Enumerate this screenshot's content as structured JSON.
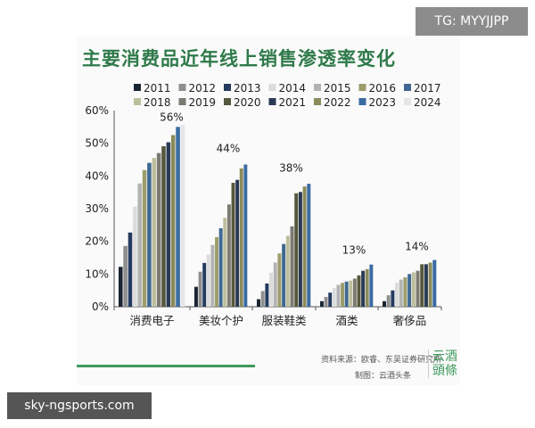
{
  "watermark_badge": "TG: MYYJJPP",
  "site_label": "sky-ngsports.com",
  "chart_data": {
    "type": "bar",
    "title": "主要消费品近年线上销售渗透率变化",
    "categories": [
      "消费电子",
      "美妆个护",
      "服装鞋类",
      "酒类",
      "奢侈品"
    ],
    "ylim": [
      0,
      60
    ],
    "yticks": [
      "0%",
      "10%",
      "20%",
      "30%",
      "40%",
      "50%",
      "60%"
    ],
    "legend_position": "top",
    "grid": false,
    "series": [
      {
        "name": "2011",
        "color": "#1b2531",
        "values": [
          12.2,
          6.1,
          2.3,
          1.7,
          1.7
        ]
      },
      {
        "name": "2012",
        "color": "#8e8e8e",
        "values": [
          18.6,
          10.7,
          4.8,
          3.0,
          3.5
        ]
      },
      {
        "name": "2013",
        "color": "#243b5f",
        "values": [
          22.7,
          13.4,
          7.1,
          4.3,
          5.0
        ]
      },
      {
        "name": "2014",
        "color": "#dcdcdc",
        "values": [
          30.6,
          16.0,
          10.4,
          5.8,
          7.3
        ]
      },
      {
        "name": "2015",
        "color": "#b3b3b3",
        "values": [
          37.7,
          18.9,
          13.5,
          6.7,
          8.3
        ]
      },
      {
        "name": "2016",
        "color": "#9c9c6c",
        "values": [
          41.8,
          21.3,
          16.3,
          7.3,
          9.0
        ]
      },
      {
        "name": "2017",
        "color": "#3e6791",
        "values": [
          44.0,
          24.0,
          19.2,
          7.7,
          10.0
        ]
      },
      {
        "name": "2018",
        "color": "#bcbf9c",
        "values": [
          45.5,
          27.2,
          21.7,
          8.0,
          10.5
        ]
      },
      {
        "name": "2019",
        "color": "#7b7a72",
        "values": [
          47.0,
          31.3,
          24.6,
          8.6,
          11.0
        ]
      },
      {
        "name": "2020",
        "color": "#55583c",
        "values": [
          49.1,
          37.9,
          34.7,
          9.6,
          13.0
        ]
      },
      {
        "name": "2021",
        "color": "#2a3a55",
        "values": [
          50.3,
          38.8,
          35.1,
          11.0,
          13.0
        ]
      },
      {
        "name": "2022",
        "color": "#8b8b5b",
        "values": [
          52.5,
          42.3,
          36.8,
          11.5,
          13.5
        ]
      },
      {
        "name": "2023",
        "color": "#3a6aa2",
        "values": [
          55.0,
          43.5,
          37.6,
          12.9,
          14.3
        ]
      },
      {
        "name": "2024",
        "color": "#e6e6ea",
        "values": [
          55.6,
          null,
          null,
          null,
          null
        ]
      }
    ],
    "annotations": [
      {
        "category": "消费电子",
        "text": "56%",
        "value": 56
      },
      {
        "category": "美妆个护",
        "text": "44%",
        "value": 44
      },
      {
        "category": "服装鞋类",
        "text": "38%",
        "value": 38
      },
      {
        "category": "酒类",
        "text": "13%",
        "value": 13
      },
      {
        "category": "奢侈品",
        "text": "14%",
        "value": 14
      }
    ]
  },
  "source": "资料来源：欧睿、东吴证券研究所",
  "credit": "制图：云酒头条",
  "logo": "云酒頭條"
}
